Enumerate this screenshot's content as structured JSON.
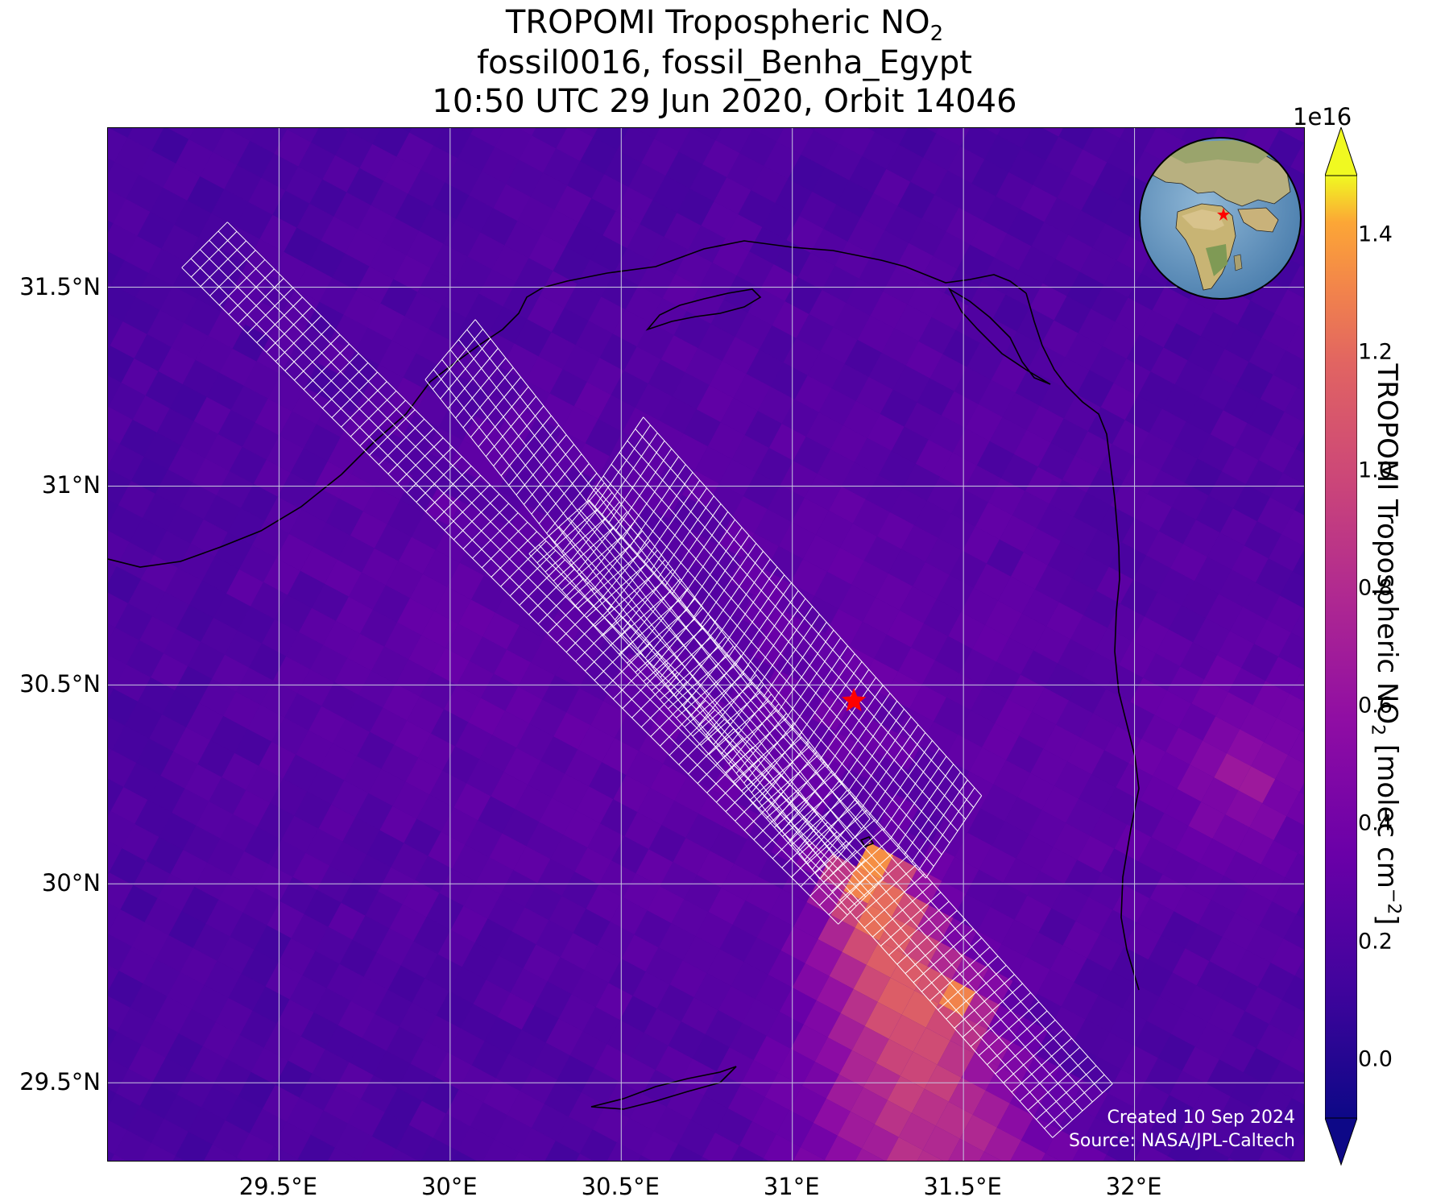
{
  "title": {
    "line1_main": "TROPOMI Tropospheric NO",
    "line1_sub": "2",
    "line2": "fossil0016, fossil_Benha_Egypt",
    "line3": "10:50 UTC 29 Jun 2020, Orbit 14046"
  },
  "map": {
    "lon_range": [
      29.0,
      32.5
    ],
    "lat_range": [
      29.3,
      31.9
    ],
    "lon_ticks": [
      {
        "value": 29.5,
        "label": "29.5°E"
      },
      {
        "value": 30.0,
        "label": "30°E"
      },
      {
        "value": 30.5,
        "label": "30.5°E"
      },
      {
        "value": 31.0,
        "label": "31°E"
      },
      {
        "value": 31.5,
        "label": "31.5°E"
      },
      {
        "value": 32.0,
        "label": "32°E"
      }
    ],
    "lat_ticks": [
      {
        "value": 31.5,
        "label": "31.5°N"
      },
      {
        "value": 31.0,
        "label": "31°N"
      },
      {
        "value": 30.5,
        "label": "30.5°N"
      },
      {
        "value": 30.0,
        "label": "30°N"
      },
      {
        "value": 29.5,
        "label": "29.5°N"
      }
    ],
    "site_marker": {
      "name": "fossil_Benha_Egypt",
      "lon": 31.18,
      "lat": 30.46,
      "icon": "red-star-icon",
      "color": "#ff0000"
    },
    "grid_color": "#c8c8e0",
    "plume_source": {
      "lon": 31.22,
      "lat": 30.05
    }
  },
  "globe_inset": {
    "icon": "globe-icon",
    "marker_icon": "red-star-icon"
  },
  "credits": {
    "created": "Created 10 Sep 2024",
    "source": "Source: NASA/JPL-Caltech"
  },
  "colorbar": {
    "exponent": "1e16",
    "label_main": "TROPOMI Tropospheric NO",
    "label_sub": "2",
    "label_units": " [molec cm",
    "label_sup": "−2",
    "label_end": "]",
    "range": [
      -0.1,
      1.5
    ],
    "extend": "both",
    "colormap": "plasma",
    "ticks": [
      {
        "value": 0.0,
        "label": "0.0"
      },
      {
        "value": 0.2,
        "label": "0.2"
      },
      {
        "value": 0.4,
        "label": "0.4"
      },
      {
        "value": 0.6,
        "label": "0.6"
      },
      {
        "value": 0.8,
        "label": "0.8"
      },
      {
        "value": 1.0,
        "label": "1.0"
      },
      {
        "value": 1.2,
        "label": "1.2"
      },
      {
        "value": 1.4,
        "label": "1.4"
      }
    ]
  }
}
